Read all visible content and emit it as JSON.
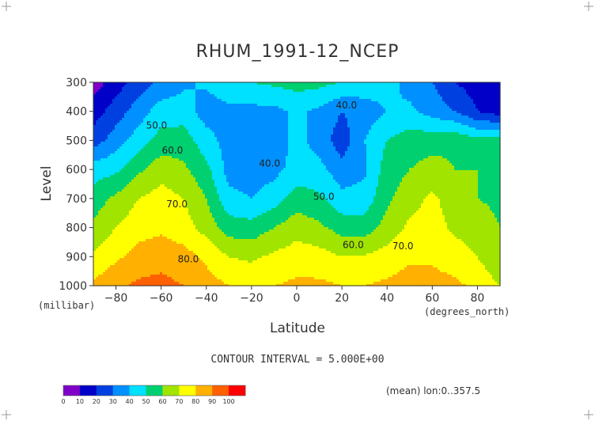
{
  "chart_data": {
    "type": "filled-contour",
    "title": "RHUM_1991-12_NCEP",
    "xlabel": "Latitude",
    "xunits": "(degrees_north)",
    "ylabel": "Level",
    "yunits": "(millibar)",
    "xlim": [
      -90,
      90
    ],
    "ylim": [
      1000,
      300
    ],
    "x_ticks": [
      -80,
      -60,
      -40,
      -20,
      0,
      20,
      40,
      60,
      80
    ],
    "y_ticks": [
      300,
      400,
      500,
      600,
      700,
      800,
      900,
      1000
    ],
    "contour_interval_text": "CONTOUR INTERVAL = 5.000E+00",
    "note": "(mean) lon:0..357.5",
    "contour_labels": [
      {
        "text": "40.0",
        "x": 22,
        "y": 390
      },
      {
        "text": "50.0",
        "x": -62,
        "y": 460
      },
      {
        "text": "60.0",
        "x": -55,
        "y": 545
      },
      {
        "text": "40.0",
        "x": -12,
        "y": 590
      },
      {
        "text": "70.0",
        "x": -53,
        "y": 730
      },
      {
        "text": "50.0",
        "x": 12,
        "y": 705
      },
      {
        "text": "60.0",
        "x": 25,
        "y": 870
      },
      {
        "text": "70.0",
        "x": 47,
        "y": 875
      },
      {
        "text": "80.0",
        "x": -48,
        "y": 920
      }
    ],
    "legend": {
      "levels": [
        "0",
        "10",
        "20",
        "30",
        "40",
        "50",
        "60",
        "70",
        "80",
        "90",
        "100"
      ],
      "colors": [
        "#8000c8",
        "#0000c8",
        "#0040e0",
        "#0090ff",
        "#00e0ff",
        "#00d070",
        "#a0e400",
        "#ffff00",
        "#ffb000",
        "#ff6000",
        "#ff0000"
      ]
    },
    "lat": [
      -90,
      -80,
      -70,
      -60,
      -50,
      -40,
      -30,
      -20,
      -10,
      0,
      10,
      20,
      30,
      40,
      50,
      60,
      70,
      80,
      90
    ],
    "levels_mb": [
      300,
      400,
      500,
      600,
      700,
      800,
      900,
      1000
    ],
    "rh_grid": [
      [
        5,
        15,
        25,
        32,
        38,
        42,
        46,
        50,
        52,
        54,
        53,
        50,
        46,
        44,
        36,
        30,
        20,
        15,
        10
      ],
      [
        15,
        25,
        35,
        45,
        45,
        35,
        38,
        37,
        37,
        42,
        38,
        30,
        35,
        40,
        42,
        36,
        30,
        20,
        15
      ],
      [
        25,
        35,
        45,
        54,
        55,
        44,
        36,
        34,
        34,
        43,
        36,
        24,
        40,
        50,
        55,
        56,
        58,
        53,
        55
      ],
      [
        45,
        48,
        58,
        66,
        62,
        53,
        36,
        35,
        37,
        44,
        43,
        34,
        38,
        55,
        60,
        64,
        60,
        60,
        56
      ],
      [
        55,
        62,
        70,
        74,
        70,
        60,
        43,
        40,
        45,
        55,
        52,
        43,
        44,
        58,
        66,
        72,
        65,
        60,
        58
      ],
      [
        62,
        70,
        76,
        78,
        74,
        66,
        55,
        54,
        60,
        66,
        62,
        56,
        55,
        64,
        72,
        74,
        68,
        65,
        60
      ],
      [
        72,
        78,
        84,
        86,
        84,
        78,
        70,
        68,
        72,
        75,
        74,
        70,
        71,
        74,
        78,
        78,
        75,
        70,
        60
      ],
      [
        82,
        88,
        92,
        93,
        90,
        84,
        80,
        78,
        80,
        82,
        82,
        80,
        80,
        82,
        85,
        84,
        82,
        78,
        70
      ]
    ]
  }
}
